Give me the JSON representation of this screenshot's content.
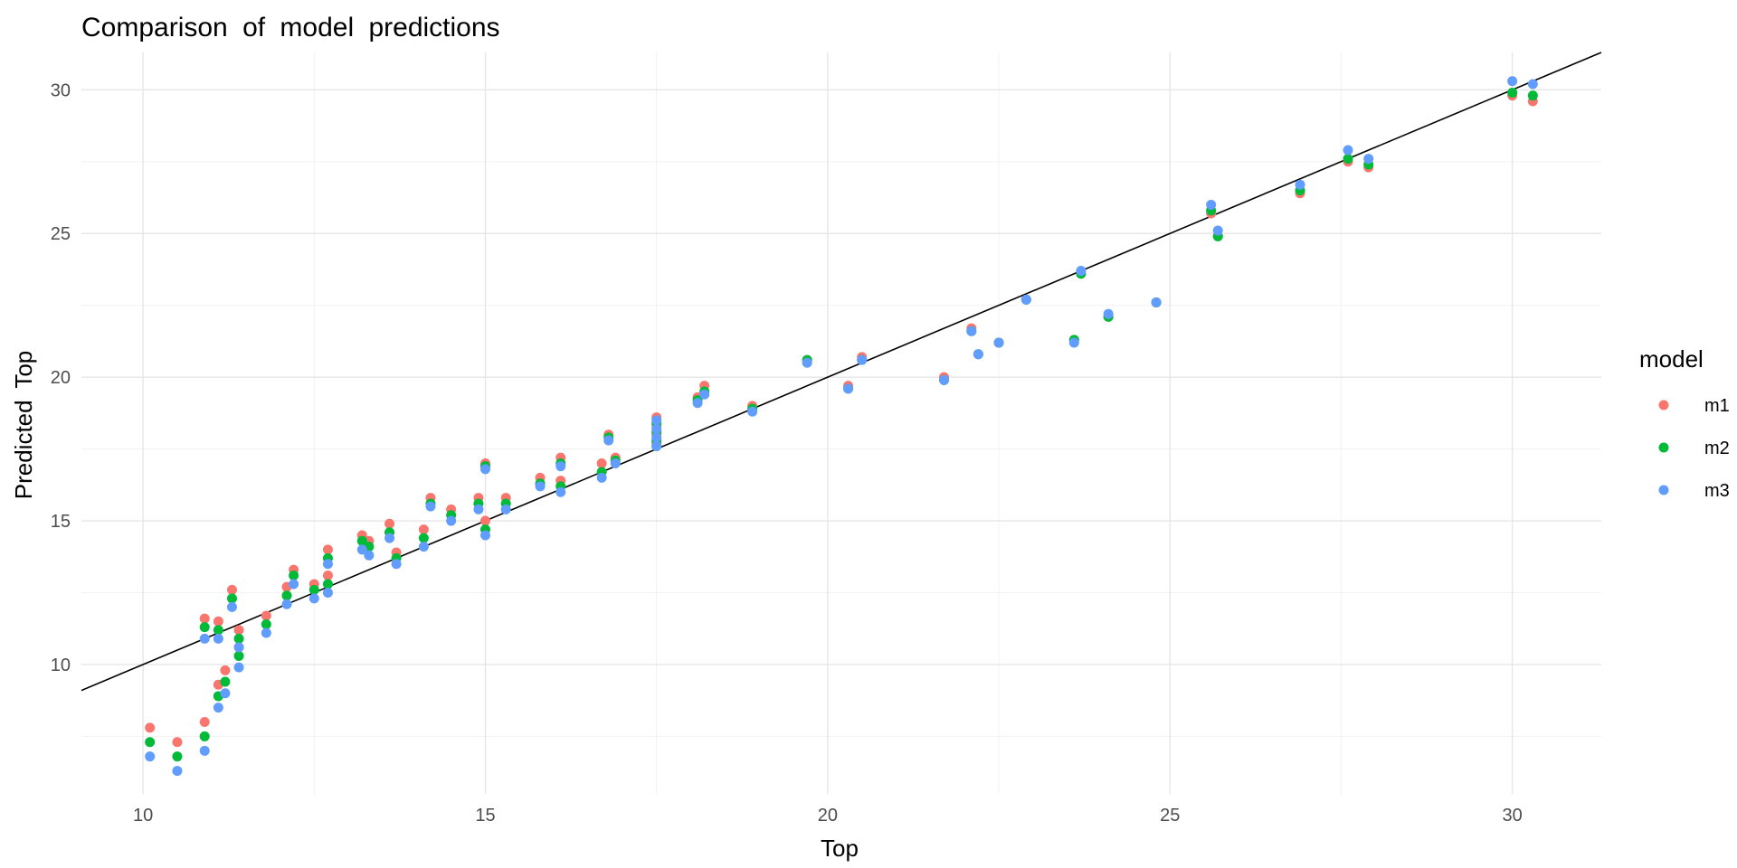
{
  "chart_data": {
    "type": "scatter",
    "title": "Comparison of model predictions",
    "xlabel": "Top",
    "ylabel": "Predicted Top",
    "xlim": [
      9.1,
      31.3
    ],
    "ylim": [
      5.5,
      31.3
    ],
    "x_ticks": [
      10,
      15,
      20,
      25,
      30
    ],
    "y_ticks": [
      10,
      15,
      20,
      25,
      30
    ],
    "grid": true,
    "legend": {
      "title": "model",
      "position": "right"
    },
    "reference_line": {
      "type": "identity",
      "color": "#000000"
    },
    "series": [
      {
        "name": "m1",
        "color": "#F8766D",
        "points": [
          [
            10.1,
            7.8
          ],
          [
            10.5,
            7.3
          ],
          [
            10.9,
            8.0
          ],
          [
            10.9,
            11.6
          ],
          [
            11.1,
            9.3
          ],
          [
            11.1,
            11.5
          ],
          [
            11.2,
            9.8
          ],
          [
            11.3,
            12.6
          ],
          [
            11.4,
            11.2
          ],
          [
            11.4,
            10.6
          ],
          [
            11.8,
            11.7
          ],
          [
            12.1,
            12.7
          ],
          [
            12.2,
            13.3
          ],
          [
            12.5,
            12.8
          ],
          [
            12.7,
            13.1
          ],
          [
            12.7,
            14.0
          ],
          [
            13.2,
            14.5
          ],
          [
            13.3,
            14.3
          ],
          [
            13.6,
            14.9
          ],
          [
            13.7,
            13.9
          ],
          [
            14.1,
            14.7
          ],
          [
            14.2,
            15.8
          ],
          [
            14.5,
            15.4
          ],
          [
            14.9,
            15.8
          ],
          [
            15.0,
            15.0
          ],
          [
            15.0,
            17.0
          ],
          [
            15.3,
            15.8
          ],
          [
            15.8,
            16.5
          ],
          [
            16.1,
            16.4
          ],
          [
            16.1,
            17.2
          ],
          [
            16.7,
            17.0
          ],
          [
            16.8,
            18.0
          ],
          [
            16.9,
            17.2
          ],
          [
            17.5,
            18.6
          ],
          [
            17.5,
            18.3
          ],
          [
            17.5,
            18.0
          ],
          [
            17.5,
            17.7
          ],
          [
            18.1,
            19.3
          ],
          [
            18.2,
            19.7
          ],
          [
            18.9,
            19.0
          ],
          [
            19.7,
            20.6
          ],
          [
            20.3,
            19.7
          ],
          [
            20.5,
            20.7
          ],
          [
            21.7,
            20.0
          ],
          [
            22.1,
            21.7
          ],
          [
            22.2,
            20.8
          ],
          [
            22.5,
            21.2
          ],
          [
            22.9,
            22.7
          ],
          [
            23.6,
            21.3
          ],
          [
            23.7,
            23.6
          ],
          [
            24.1,
            22.1
          ],
          [
            24.8,
            22.6
          ],
          [
            25.6,
            25.7
          ],
          [
            25.7,
            24.9
          ],
          [
            26.9,
            26.4
          ],
          [
            27.6,
            27.5
          ],
          [
            27.9,
            27.3
          ],
          [
            30.0,
            29.8
          ],
          [
            30.3,
            29.6
          ]
        ]
      },
      {
        "name": "m2",
        "color": "#00BA38",
        "points": [
          [
            10.1,
            7.3
          ],
          [
            10.5,
            6.8
          ],
          [
            10.9,
            7.5
          ],
          [
            10.9,
            11.3
          ],
          [
            11.1,
            8.9
          ],
          [
            11.1,
            11.2
          ],
          [
            11.2,
            9.4
          ],
          [
            11.3,
            12.3
          ],
          [
            11.4,
            10.9
          ],
          [
            11.4,
            10.3
          ],
          [
            11.8,
            11.4
          ],
          [
            12.1,
            12.4
          ],
          [
            12.2,
            13.1
          ],
          [
            12.5,
            12.6
          ],
          [
            12.7,
            12.8
          ],
          [
            12.7,
            13.7
          ],
          [
            13.2,
            14.3
          ],
          [
            13.3,
            14.1
          ],
          [
            13.6,
            14.6
          ],
          [
            13.7,
            13.7
          ],
          [
            14.1,
            14.4
          ],
          [
            14.2,
            15.6
          ],
          [
            14.5,
            15.2
          ],
          [
            14.9,
            15.6
          ],
          [
            15.0,
            14.7
          ],
          [
            15.0,
            16.9
          ],
          [
            15.3,
            15.6
          ],
          [
            15.8,
            16.3
          ],
          [
            16.1,
            16.2
          ],
          [
            16.1,
            17.0
          ],
          [
            16.7,
            16.7
          ],
          [
            16.8,
            17.9
          ],
          [
            16.9,
            17.1
          ],
          [
            17.5,
            18.4
          ],
          [
            17.5,
            18.1
          ],
          [
            17.5,
            17.8
          ],
          [
            17.5,
            17.6
          ],
          [
            18.1,
            19.2
          ],
          [
            18.2,
            19.5
          ],
          [
            18.9,
            18.9
          ],
          [
            19.7,
            20.6
          ],
          [
            20.3,
            19.6
          ],
          [
            20.5,
            20.6
          ],
          [
            21.7,
            19.9
          ],
          [
            22.1,
            21.6
          ],
          [
            22.2,
            20.8
          ],
          [
            22.5,
            21.2
          ],
          [
            22.9,
            22.7
          ],
          [
            23.6,
            21.3
          ],
          [
            23.7,
            23.6
          ],
          [
            24.1,
            22.1
          ],
          [
            24.8,
            22.6
          ],
          [
            25.6,
            25.8
          ],
          [
            25.7,
            24.9
          ],
          [
            26.9,
            26.5
          ],
          [
            27.6,
            27.6
          ],
          [
            27.9,
            27.4
          ],
          [
            30.0,
            29.9
          ],
          [
            30.3,
            29.8
          ]
        ]
      },
      {
        "name": "m3",
        "color": "#619CFF",
        "points": [
          [
            10.1,
            6.8
          ],
          [
            10.5,
            6.3
          ],
          [
            10.9,
            7.0
          ],
          [
            10.9,
            10.9
          ],
          [
            11.1,
            8.5
          ],
          [
            11.1,
            10.9
          ],
          [
            11.2,
            9.0
          ],
          [
            11.3,
            12.0
          ],
          [
            11.4,
            10.6
          ],
          [
            11.4,
            9.9
          ],
          [
            11.8,
            11.1
          ],
          [
            12.1,
            12.1
          ],
          [
            12.2,
            12.8
          ],
          [
            12.5,
            12.3
          ],
          [
            12.7,
            12.5
          ],
          [
            12.7,
            13.5
          ],
          [
            13.2,
            14.0
          ],
          [
            13.3,
            13.8
          ],
          [
            13.6,
            14.4
          ],
          [
            13.7,
            13.5
          ],
          [
            14.1,
            14.1
          ],
          [
            14.2,
            15.5
          ],
          [
            14.5,
            15.0
          ],
          [
            14.9,
            15.4
          ],
          [
            15.0,
            14.5
          ],
          [
            15.0,
            16.8
          ],
          [
            15.3,
            15.4
          ],
          [
            15.8,
            16.2
          ],
          [
            16.1,
            16.0
          ],
          [
            16.1,
            16.9
          ],
          [
            16.7,
            16.5
          ],
          [
            16.8,
            17.8
          ],
          [
            16.9,
            17.0
          ],
          [
            17.5,
            18.2
          ],
          [
            17.5,
            17.9
          ],
          [
            17.5,
            17.6
          ],
          [
            17.5,
            18.5
          ],
          [
            18.1,
            19.1
          ],
          [
            18.2,
            19.4
          ],
          [
            18.9,
            18.8
          ],
          [
            19.7,
            20.5
          ],
          [
            20.3,
            19.6
          ],
          [
            20.5,
            20.6
          ],
          [
            21.7,
            19.9
          ],
          [
            22.1,
            21.6
          ],
          [
            22.2,
            20.8
          ],
          [
            22.5,
            21.2
          ],
          [
            22.9,
            22.7
          ],
          [
            23.6,
            21.2
          ],
          [
            23.7,
            23.7
          ],
          [
            24.1,
            22.2
          ],
          [
            24.8,
            22.6
          ],
          [
            25.6,
            26.0
          ],
          [
            25.7,
            25.1
          ],
          [
            26.9,
            26.7
          ],
          [
            27.6,
            27.9
          ],
          [
            27.9,
            27.6
          ],
          [
            30.0,
            30.3
          ],
          [
            30.3,
            30.2
          ]
        ]
      }
    ]
  }
}
